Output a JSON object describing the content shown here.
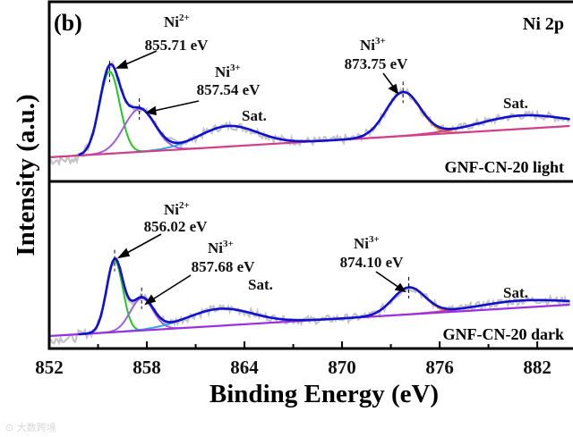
{
  "chart_data": {
    "type": "line",
    "panel_label": "(b)",
    "title": "Ni 2p",
    "xlabel": "Binding Energy (eV)",
    "ylabel": "Intensity (a.u.)",
    "xlim": [
      852,
      884
    ],
    "xticks": [
      "852",
      "858",
      "864",
      "870",
      "876",
      "882"
    ],
    "xtick_values": [
      852,
      858,
      864,
      870,
      876,
      882
    ],
    "colors": {
      "raw": "#c4c4c4",
      "envelope": "#1010d0",
      "ni2": "#22c722",
      "ni3": "#a060e0",
      "sat1": "#2ea8e0",
      "ni3b": "#f08a1e",
      "sat2": "#d0408a",
      "baseline": "#d0408a"
    },
    "watermark": "大数跨境",
    "panels": [
      {
        "sample": "GNF-CN-20 light",
        "baseline": {
          "x": [
            852,
            884
          ],
          "y": [
            12,
            47
          ]
        },
        "components": [
          {
            "name": "Ni2+",
            "label_ion": "Ni",
            "label_charge": "2+",
            "label_energy": "855.71 eV",
            "center": 855.71,
            "amplitude": 92,
            "sigma": 0.62,
            "color_key": "ni2"
          },
          {
            "name": "Ni3+",
            "label_ion": "Ni",
            "label_charge": "3+",
            "label_energy": "857.54 eV",
            "center": 857.54,
            "amplitude": 48,
            "sigma": 0.95,
            "color_key": "ni3"
          },
          {
            "name": "Sat.",
            "label": "Sat.",
            "center": 863.0,
            "amplitude": 23,
            "sigma": 1.8,
            "color_key": "sat1"
          },
          {
            "name": "Ni3+",
            "label_ion": "Ni",
            "label_charge": "3+",
            "label_energy": "873.75 eV",
            "center": 873.75,
            "amplitude": 49,
            "sigma": 1.05,
            "color_key": "ni3b"
          },
          {
            "name": "Sat.",
            "label": "Sat.",
            "center": 881.0,
            "amplitude": 15,
            "sigma": 2.6,
            "color_key": "sat2"
          }
        ]
      },
      {
        "sample": "GNF-CN-20 dark",
        "baseline": {
          "x": [
            852,
            884
          ],
          "y": [
            10,
            45
          ]
        },
        "components": [
          {
            "name": "Ni2+",
            "label_ion": "Ni",
            "label_charge": "2+",
            "label_energy": "856.02 eV",
            "center": 856.02,
            "amplitude": 80,
            "sigma": 0.5,
            "color_key": "ni2"
          },
          {
            "name": "Ni3+",
            "label_ion": "Ni",
            "label_charge": "3+",
            "label_energy": "857.68 eV",
            "center": 857.68,
            "amplitude": 36,
            "sigma": 0.7,
            "color_key": "ni3"
          },
          {
            "name": "Sat.",
            "label": "Sat.",
            "center": 862.5,
            "amplitude": 19,
            "sigma": 2.0,
            "color_key": "sat1"
          },
          {
            "name": "Ni3+",
            "label_ion": "Ni",
            "label_charge": "3+",
            "label_energy": "874.10 eV",
            "center": 874.1,
            "amplitude": 30,
            "sigma": 1.0,
            "color_key": "ni3b"
          },
          {
            "name": "Sat.",
            "label": "Sat.",
            "center": 881.0,
            "amplitude": 8,
            "sigma": 2.6,
            "color_key": "sat2"
          }
        ]
      }
    ]
  }
}
